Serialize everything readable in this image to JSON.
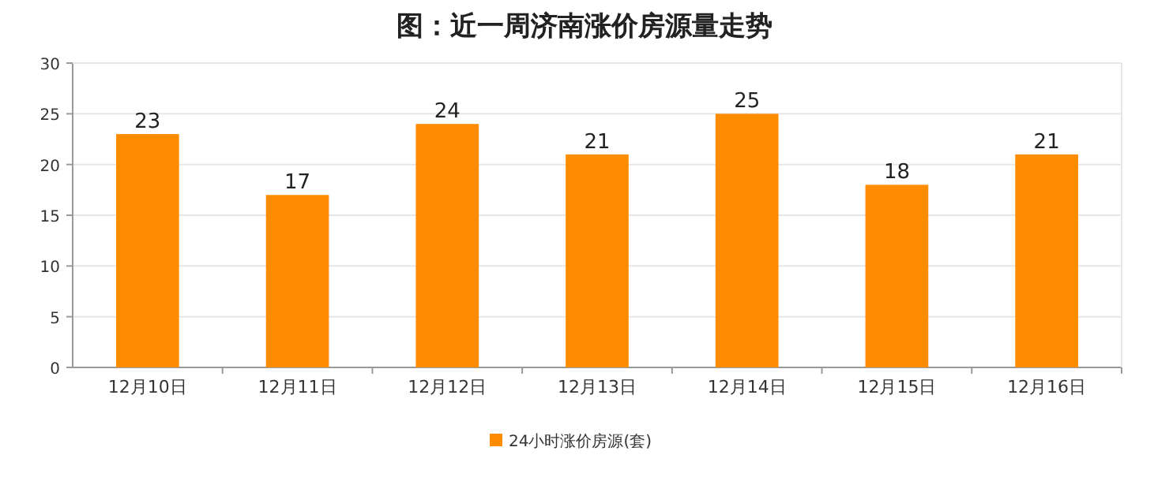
{
  "chart_data": {
    "type": "bar",
    "title": "图：近一周济南涨价房源量走势",
    "categories": [
      "12月10日",
      "12月11日",
      "12月12日",
      "12月13日",
      "12月14日",
      "12月15日",
      "12月16日"
    ],
    "series": [
      {
        "name": "24小时涨价房源(套)",
        "color": "#ff8c00",
        "values": [
          23,
          17,
          24,
          21,
          25,
          18,
          21
        ]
      }
    ],
    "ylim": [
      0,
      30
    ],
    "yticks": [
      0,
      5,
      10,
      15,
      20,
      25,
      30
    ],
    "grid": "y",
    "legend": "bottom",
    "data_labels": true
  }
}
